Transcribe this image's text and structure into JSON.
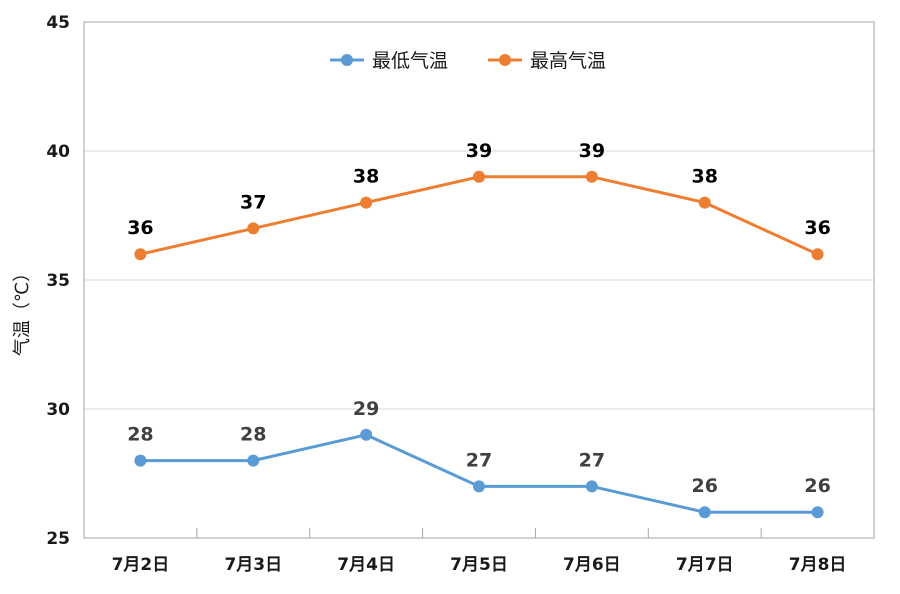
{
  "chart_data": {
    "type": "line",
    "categories": [
      "7月2日",
      "7月3日",
      "7月4日",
      "7月5日",
      "7月6日",
      "7月7日",
      "7月8日"
    ],
    "series": [
      {
        "name": "最低气温",
        "values": [
          28,
          28,
          29,
          27,
          27,
          26,
          26
        ],
        "color": "#5b9bd5",
        "label_color": "#404040"
      },
      {
        "name": "最高气温",
        "values": [
          36,
          37,
          38,
          39,
          39,
          38,
          36
        ],
        "color": "#ed7d31",
        "label_color": "#000000"
      }
    ],
    "xlabel": "",
    "ylabel": "气温（℃）",
    "ylim": [
      25,
      45
    ],
    "yticks": [
      25,
      30,
      35,
      40,
      45
    ],
    "grid": true,
    "legend_position": "top-center"
  }
}
